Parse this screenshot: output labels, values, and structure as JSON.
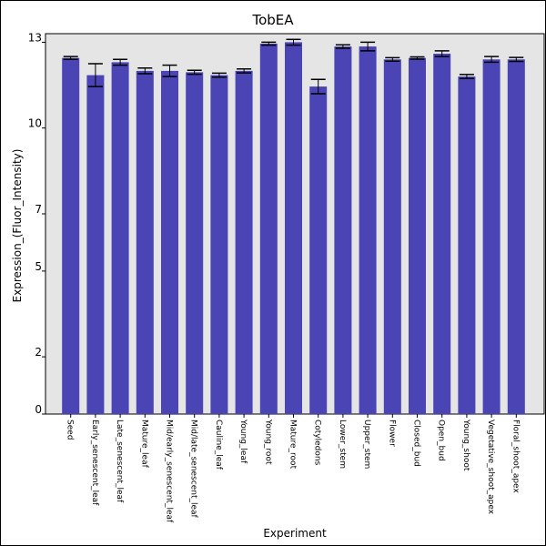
{
  "chart_data": {
    "type": "bar",
    "title": "TobEA",
    "xlabel": "Experiment",
    "ylabel": "Expression_(Fluor_Intensity)",
    "ylim": [
      0,
      13.3
    ],
    "yticks": [
      0,
      2,
      5,
      7,
      10,
      13
    ],
    "grid": false,
    "categories": [
      "Seed",
      "Early_senescent_leaf",
      "Late_senescent_leaf",
      "Mature_leaf",
      "Mid/early_senescent_leaf",
      "Mid/late_senescent_leaf",
      "Cauline_leaf",
      "Young_leaf",
      "Young_root",
      "Mature_root",
      "Cotyledons",
      "Lower_stem",
      "Upper_stem",
      "Flower",
      "Closed_bud",
      "Open_bud",
      "Young_shoot",
      "Vegetative_shoot_apex",
      "Floral_shoot_apex"
    ],
    "values": [
      12.45,
      11.85,
      12.3,
      12.0,
      12.0,
      11.95,
      11.85,
      12.0,
      12.95,
      13.0,
      11.45,
      12.85,
      12.85,
      12.4,
      12.45,
      12.6,
      11.8,
      12.4,
      12.4
    ],
    "errors": [
      0.05,
      0.4,
      0.1,
      0.1,
      0.2,
      0.07,
      0.07,
      0.07,
      0.05,
      0.1,
      0.25,
      0.06,
      0.15,
      0.06,
      0.04,
      0.1,
      0.07,
      0.1,
      0.07
    ],
    "colors": {
      "bar": "#4a44b4",
      "plot_background": "#e5e5e5",
      "error_bar": "#000000"
    }
  }
}
